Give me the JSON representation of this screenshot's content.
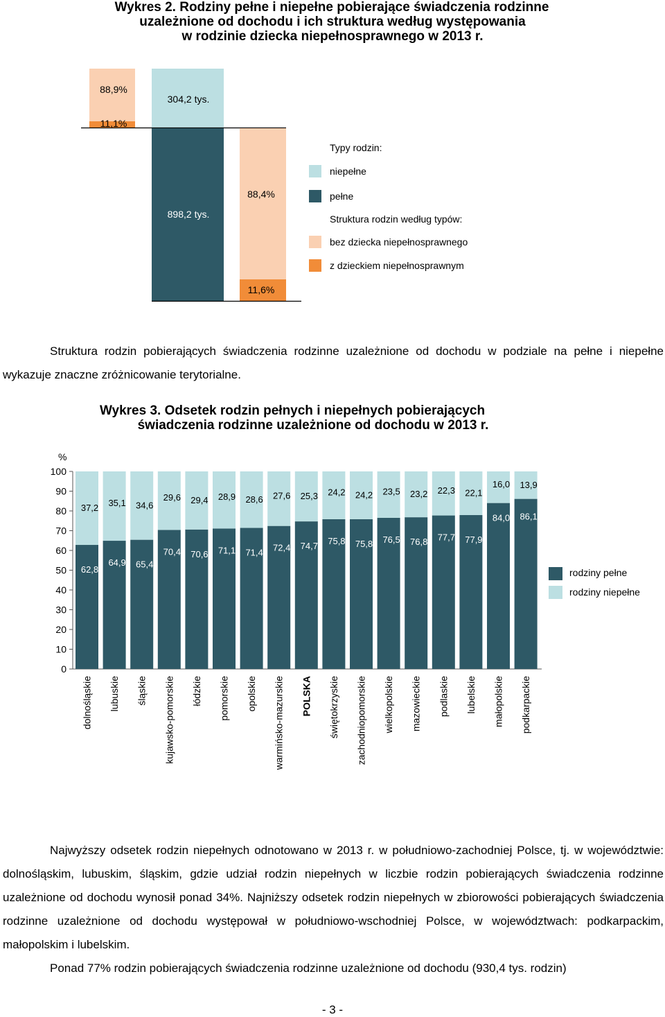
{
  "wykres2": {
    "title_lines": [
      "Wykres 2. Rodziny pełne i niepełne pobierające świadczenia rodzinne",
      "uzależnione od dochodu i ich struktura według występowania",
      "w rodzinie dziecka niepełnosprawnego w 2013 r."
    ],
    "chart_data": {
      "type": "bar",
      "bars": [
        {
          "family_type": "niepełne",
          "value_label": "304,2 tys.",
          "value": 304.2,
          "structure": {
            "bez_dziecka": 88.9,
            "z_dzieckiem": 11.1,
            "bez_dziecka_label": "88,9%",
            "z_dzieckiem_label": "11,1%"
          }
        },
        {
          "family_type": "pełne",
          "value_label": "898,2 tys.",
          "value": 898.2,
          "structure": {
            "bez_dziecka": 88.4,
            "z_dzieckiem": 11.6,
            "bez_dziecka_label": "88,4%",
            "z_dzieckiem_label": "11,6%"
          }
        }
      ],
      "legend": {
        "types_header": "Typy rodzin:",
        "niepelne": "niepełne",
        "pelne": "pełne",
        "structure_header": "Struktura rodzin według typów:",
        "bez_dziecka": "bez dziecka niepełnosprawnego",
        "z_dzieckiem": "z dzieckiem niepełnosprawnym"
      },
      "colors": {
        "pelne": "#2e5966",
        "niepelne": "#bcdfe2",
        "bez_dziecka": "#fad0b2",
        "z_dzieckiem": "#f18c38"
      }
    }
  },
  "paragraph1": "Struktura rodzin pobierających świadczenia rodzinne uzależnione od dochodu w podziale na pełne i niepełne wykazuje znaczne zróżnicowanie terytorialne.",
  "wykres3": {
    "title_lines": [
      "Wykres 3. Odsetek rodzin pełnych i niepełnych pobierających",
      "świadczenia rodzinne uzależnione od dochodu w 2013 r."
    ],
    "chart_data": {
      "type": "bar",
      "stacked": true,
      "y_unit": "%",
      "ylim": [
        0,
        100
      ],
      "yticks": [
        0,
        10,
        20,
        30,
        40,
        50,
        60,
        70,
        80,
        90,
        100
      ],
      "categories": [
        "dolnośląskie",
        "lubuskie",
        "śląskie",
        "kujawsko-pomorskie",
        "łódzkie",
        "pomorskie",
        "opolskie",
        "warmińsko-mazurskie",
        "POLSKA",
        "świętokrzyskie",
        "zachodniopomorskie",
        "wielkopolskie",
        "mazowieckie",
        "podlaskie",
        "lubelskie",
        "małopolskie",
        "podkarpackie"
      ],
      "highlight_category": "POLSKA",
      "series": [
        {
          "name": "rodziny pełne",
          "color": "#2e5966",
          "values": [
            62.8,
            64.9,
            65.4,
            70.4,
            70.6,
            71.1,
            71.4,
            72.4,
            74.7,
            75.8,
            75.8,
            76.5,
            76.8,
            77.7,
            77.9,
            84.0,
            86.1
          ],
          "labels": [
            "62,8",
            "64,9",
            "65,4",
            "70,4",
            "70,6",
            "71,1",
            "71,4",
            "72,4",
            "74,7",
            "75,8",
            "75,8",
            "76,5",
            "76,8",
            "77,7",
            "77,9",
            "84,0",
            "86,1"
          ]
        },
        {
          "name": "rodziny niepełne",
          "color": "#bcdfe2",
          "values": [
            37.2,
            35.1,
            34.6,
            29.6,
            29.4,
            28.9,
            28.6,
            27.6,
            25.3,
            24.2,
            24.2,
            23.5,
            23.2,
            22.3,
            22.1,
            16.0,
            13.9
          ],
          "labels": [
            "37,2",
            "35,1",
            "34,6",
            "29,6",
            "29,4",
            "28,9",
            "28,6",
            "27,6",
            "25,3",
            "24,2",
            "24,2",
            "23,5",
            "23,2",
            "22,3",
            "22,1",
            "16,0",
            "13,9"
          ]
        }
      ],
      "legend_position": "right"
    }
  },
  "paragraph2": "Najwyższy odsetek rodzin niepełnych odnotowano w 2013 r. w południowo-zachodniej Polsce, tj. w województwie: dolnośląskim, lubuskim, śląskim, gdzie udział rodzin niepełnych w liczbie rodzin pobierających świadczenia rodzinne uzależnione od dochodu wynosił ponad 34%. Najniższy odsetek rodzin niepełnych w zbiorowości pobierających świadczenia rodzinne uzależnione od dochodu występował w południowo-wschodniej Polsce, w województwach: podkarpackim, małopolskim i lubelskim.",
  "paragraph3": "Ponad 77% rodzin pobierających świadczenia rodzinne uzależnione od dochodu (930,4 tys. rodzin)",
  "page_number": "- 3 -"
}
